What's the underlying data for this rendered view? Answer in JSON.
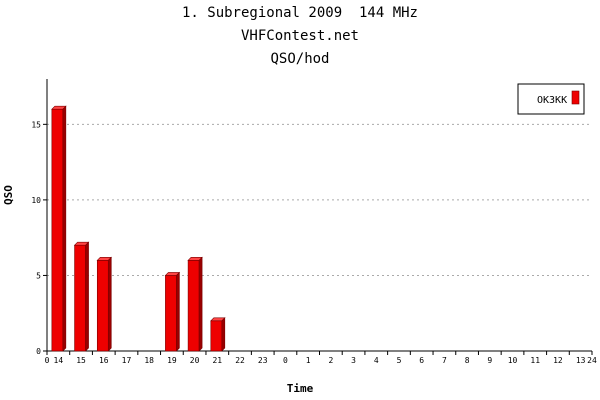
{
  "chart_data": {
    "type": "bar",
    "title": "1. Subregional 2009  144 MHz",
    "subtitle": "VHFContest.net",
    "subtitle2": "QSO/hod",
    "xlabel": "Time",
    "ylabel": "QSO",
    "x_edge_labels": [
      "0",
      "24"
    ],
    "categories": [
      "14",
      "15",
      "16",
      "17",
      "18",
      "19",
      "20",
      "21",
      "22",
      "23",
      "0",
      "1",
      "2",
      "3",
      "4",
      "5",
      "6",
      "7",
      "8",
      "9",
      "10",
      "11",
      "12",
      "13"
    ],
    "series": [
      {
        "name": "OK3KK",
        "color": "#ee0000",
        "values": [
          16,
          7,
          6,
          0,
          0,
          5,
          6,
          2,
          0,
          0,
          0,
          0,
          0,
          0,
          0,
          0,
          0,
          0,
          0,
          0,
          0,
          0,
          0,
          0
        ]
      }
    ],
    "ylim": [
      0,
      18
    ],
    "yticks": [
      0,
      5,
      10,
      15
    ],
    "grid": true,
    "legend": "top-right"
  }
}
